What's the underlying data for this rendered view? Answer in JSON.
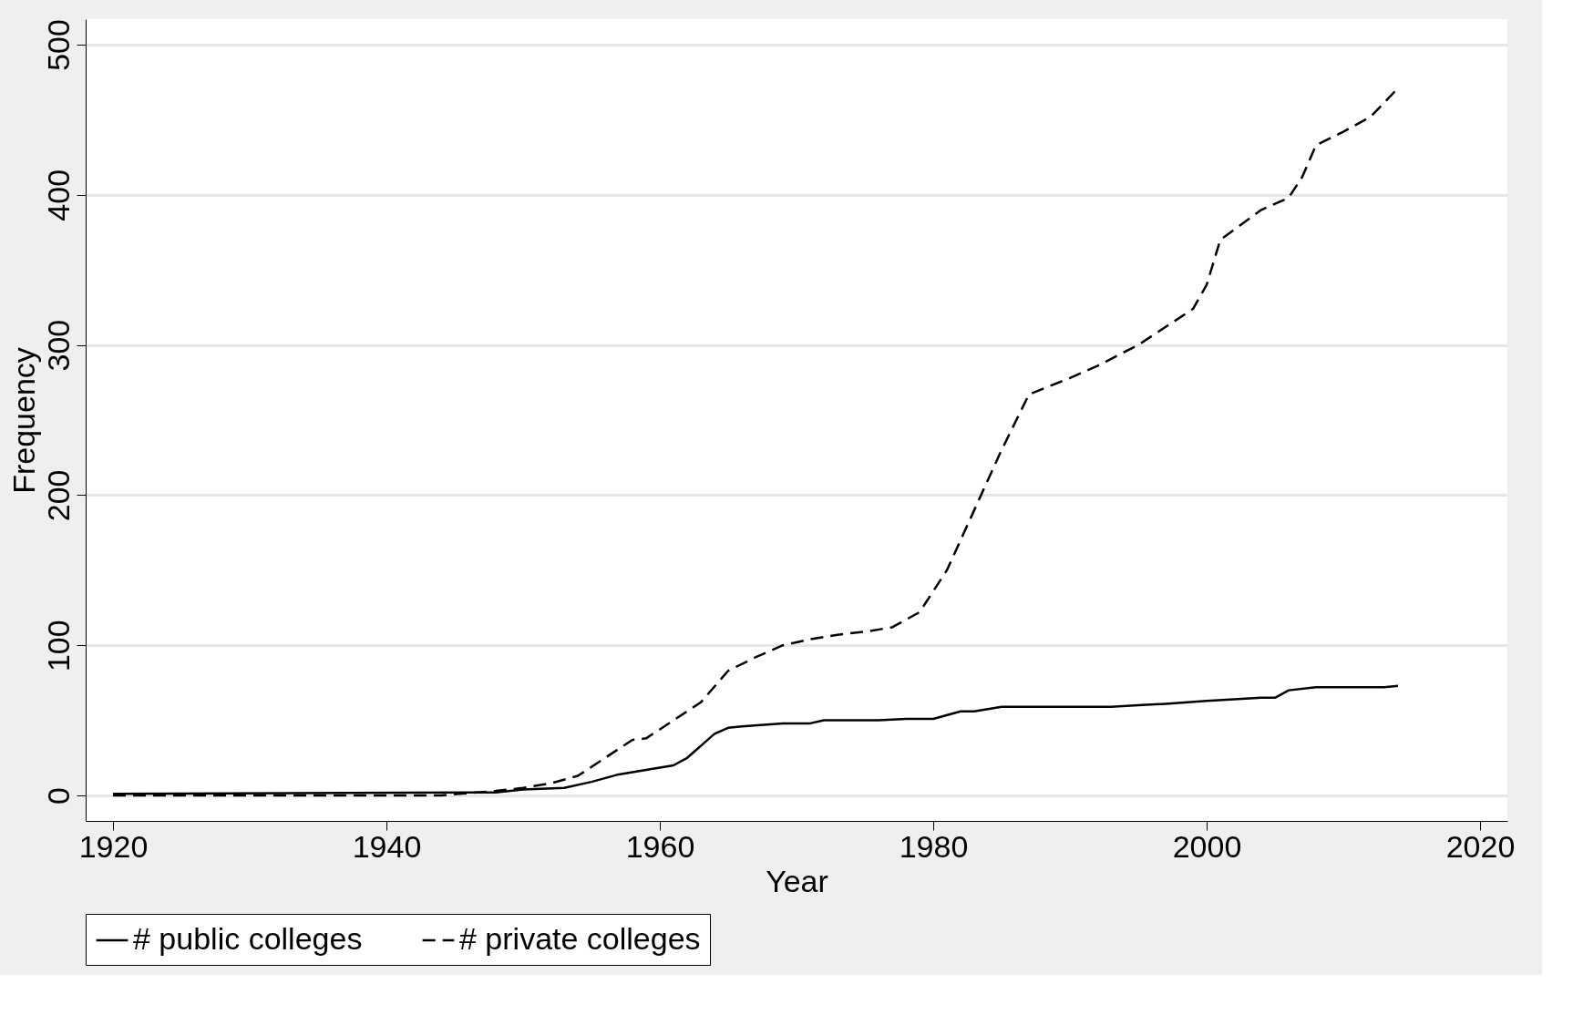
{
  "chart_data": {
    "type": "line",
    "xlabel": "Year",
    "ylabel": "Frequency",
    "xlim": [
      1918,
      2022
    ],
    "xticks": [
      1920,
      1940,
      1960,
      1980,
      2000,
      2020
    ],
    "ylim": [
      -17,
      517
    ],
    "yticks": [
      0,
      100,
      200,
      300,
      400,
      500
    ],
    "grid": "y",
    "legend": "bottom",
    "series": [
      {
        "name": "# public colleges",
        "color": "#000000",
        "line_style": "solid",
        "x": [
          1920,
          1948,
          1950,
          1953,
          1955,
          1957,
          1959,
          1961,
          1962,
          1963,
          1964,
          1965,
          1966,
          1969,
          1971,
          1972,
          1976,
          1978,
          1980,
          1982,
          1983,
          1985,
          1993,
          1995,
          1997,
          2000,
          2002,
          2004,
          2005,
          2006,
          2008,
          2013,
          2014
        ],
        "values": [
          1,
          2,
          4,
          5,
          9,
          14,
          17,
          20,
          25,
          33,
          41,
          45,
          46,
          48,
          48,
          50,
          50,
          51,
          51,
          56,
          56,
          59,
          59,
          60,
          61,
          63,
          64,
          65,
          65,
          70,
          72,
          72,
          73
        ]
      },
      {
        "name": "# private colleges",
        "color": "#000000",
        "line_style": "dashed",
        "x": [
          1920,
          1944,
          1948,
          1950,
          1952,
          1954,
          1956,
          1958,
          1959,
          1961,
          1963,
          1965,
          1967,
          1969,
          1971,
          1973,
          1975,
          1977,
          1979,
          1981,
          1983,
          1985,
          1987,
          1990,
          1992,
          1995,
          1997,
          1999,
          2000,
          2001,
          2004,
          2006,
          2007,
          2008,
          2010,
          2012,
          2014
        ],
        "values": [
          0,
          0,
          3,
          5,
          8,
          13,
          25,
          37,
          38,
          50,
          62,
          83,
          92,
          100,
          104,
          107,
          109,
          112,
          122,
          150,
          190,
          230,
          267,
          278,
          286,
          300,
          312,
          324,
          340,
          370,
          390,
          398,
          412,
          433,
          442,
          452,
          471
        ]
      }
    ]
  }
}
